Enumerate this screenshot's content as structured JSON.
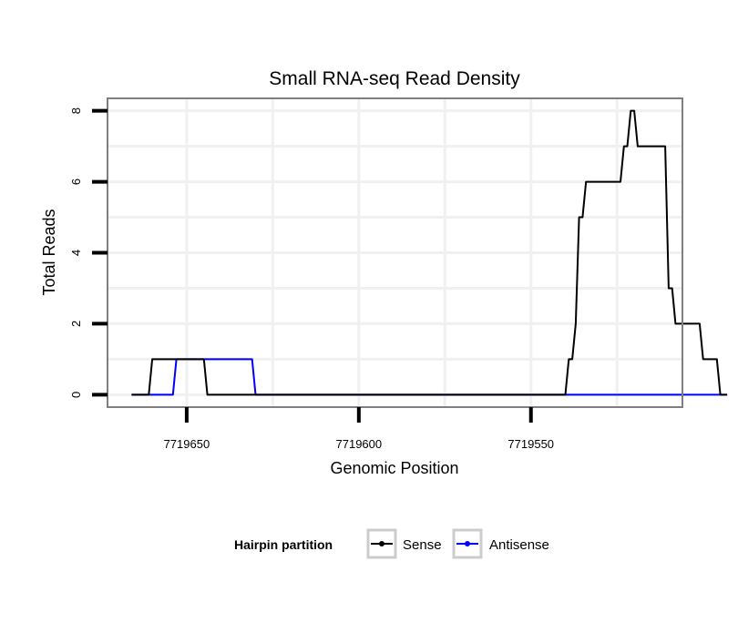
{
  "chart_data": {
    "type": "line",
    "title": "Small RNA-seq Read Density",
    "xlabel": "Genomic Position",
    "ylabel": "Total Reads",
    "xlim": [
      7719673,
      7719506
    ],
    "x_reversed": true,
    "ylim": [
      -0.35,
      8.35
    ],
    "x_ticks": [
      7719650,
      7719600,
      7719550
    ],
    "x_tick_labels": [
      "7719650",
      "7719600",
      "7719550"
    ],
    "y_ticks": [
      0,
      2,
      4,
      6,
      8
    ],
    "y_tick_labels": [
      "0",
      "2",
      "4",
      "6",
      "8"
    ],
    "grid": true,
    "legend": {
      "title": "Hairpin partition",
      "position": "bottom",
      "entries": [
        {
          "label": "Sense",
          "color": "#000000"
        },
        {
          "label": "Antisense",
          "color": "#0000ff"
        }
      ]
    },
    "series": [
      {
        "name": "Sense",
        "color": "#000000",
        "points": [
          [
            7719666,
            0
          ],
          [
            7719661,
            0
          ],
          [
            7719660,
            1
          ],
          [
            7719645,
            1
          ],
          [
            7719644,
            0
          ],
          [
            7719540,
            0
          ],
          [
            7719539,
            1
          ],
          [
            7719538,
            1
          ],
          [
            7719537,
            2
          ],
          [
            7719536,
            5
          ],
          [
            7719535,
            5
          ],
          [
            7719534,
            6
          ],
          [
            7719524,
            6
          ],
          [
            7719523,
            7
          ],
          [
            7719522,
            7
          ],
          [
            7719521,
            8
          ],
          [
            7719520,
            8
          ],
          [
            7719519,
            7
          ],
          [
            7719511,
            7
          ],
          [
            7719510,
            3
          ],
          [
            7719509,
            3
          ],
          [
            7719508,
            2
          ],
          [
            7719501,
            2
          ],
          [
            7719500,
            1
          ],
          [
            7719496,
            1
          ],
          [
            7719495,
            0
          ],
          [
            7719493,
            0
          ]
        ]
      },
      {
        "name": "Antisense",
        "color": "#0000ff",
        "points": [
          [
            7719666,
            0
          ],
          [
            7719654,
            0
          ],
          [
            7719653,
            1
          ],
          [
            7719631,
            1
          ],
          [
            7719630,
            0
          ],
          [
            7719493,
            0
          ]
        ]
      }
    ]
  }
}
